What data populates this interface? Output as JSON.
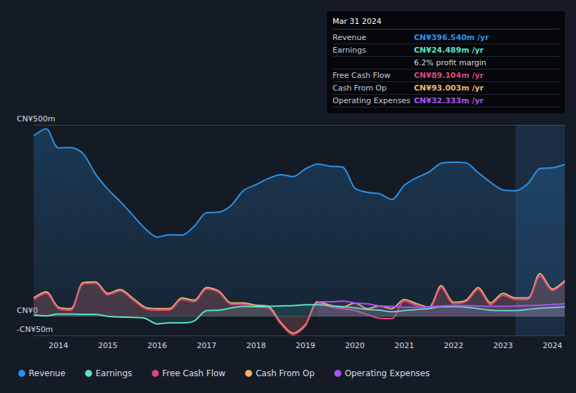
{
  "chart_data": {
    "type": "area",
    "x": [
      2013.5,
      2013.75,
      2014,
      2014.25,
      2014.5,
      2014.75,
      2015,
      2015.25,
      2015.5,
      2015.75,
      2016,
      2016.25,
      2016.5,
      2016.75,
      2017,
      2017.25,
      2017.5,
      2017.75,
      2018,
      2018.25,
      2018.5,
      2018.75,
      2019,
      2019.25,
      2019.5,
      2019.75,
      2020,
      2020.25,
      2020.5,
      2020.75,
      2021,
      2021.25,
      2021.5,
      2021.75,
      2022,
      2022.25,
      2022.5,
      2022.75,
      2023,
      2023.25,
      2023.5,
      2023.75,
      2024,
      2024.25
    ],
    "xlim": [
      2013.5,
      2024.25
    ],
    "xticks": [
      2014,
      2015,
      2016,
      2017,
      2018,
      2019,
      2020,
      2021,
      2022,
      2023,
      2024
    ],
    "ylim": [
      -50,
      500
    ],
    "yticks": [
      {
        "value": 500,
        "label": "CN¥500m"
      },
      {
        "value": 0,
        "label": "CN¥0"
      },
      {
        "value": -50,
        "label": "-CN¥50m"
      }
    ],
    "grid": true,
    "legend": "bottom-left",
    "highlight": [
      2023.25,
      2024.25
    ],
    "series": [
      {
        "name": "Revenue",
        "color": "#2d93e6",
        "values": [
          472,
          490,
          440,
          441,
          425,
          372,
          332,
          300,
          265,
          230,
          207,
          213,
          212,
          235,
          271,
          272,
          290,
          329,
          344,
          360,
          370,
          365,
          385,
          398,
          392,
          390,
          335,
          324,
          320,
          305,
          342,
          362,
          377,
          400,
          403,
          401,
          375,
          350,
          330,
          328,
          346,
          386,
          388,
          396.54
        ]
      },
      {
        "name": "Earnings",
        "color": "#5ae3c6",
        "values": [
          4,
          1,
          6,
          6,
          5,
          5,
          0,
          -2,
          -3,
          -5,
          -20,
          -17,
          -17,
          -12,
          15,
          16,
          22,
          26,
          25,
          26,
          27,
          28,
          30,
          30,
          28,
          25,
          22,
          18,
          16,
          12,
          15,
          18,
          20,
          25,
          25,
          24,
          20,
          16,
          15,
          15,
          18,
          21,
          23,
          24.489
        ]
      },
      {
        "name": "Free Cash Flow",
        "color": "#d9487f",
        "values": [
          44,
          60,
          20,
          16,
          84,
          86,
          56,
          66,
          44,
          20,
          16,
          16,
          44,
          38,
          71,
          62,
          31,
          31,
          25,
          22,
          -20,
          -48,
          -25,
          35,
          25,
          20,
          15,
          5,
          -5,
          -6,
          40,
          28,
          20,
          75,
          33,
          38,
          70,
          30,
          55,
          44,
          44,
          105,
          67,
          89.104
        ]
      },
      {
        "name": "Cash From Op",
        "color": "#f0b26c",
        "values": [
          48,
          64,
          24,
          20,
          88,
          90,
          60,
          70,
          48,
          24,
          20,
          20,
          48,
          42,
          75,
          66,
          35,
          35,
          29,
          26,
          -16,
          -44,
          -22,
          38,
          29,
          24,
          35,
          20,
          27,
          20,
          44,
          33,
          24,
          80,
          37,
          42,
          75,
          35,
          60,
          48,
          48,
          112,
          71,
          93.003
        ]
      },
      {
        "name": "Operating Expenses",
        "color": "#a855f0",
        "values": [
          null,
          null,
          null,
          null,
          null,
          null,
          null,
          null,
          null,
          null,
          null,
          null,
          null,
          null,
          null,
          null,
          null,
          null,
          null,
          null,
          null,
          null,
          null,
          38,
          38,
          40,
          35,
          33,
          27,
          26,
          24,
          24,
          25,
          27,
          28,
          28,
          27,
          26,
          26,
          27,
          28,
          29,
          31,
          32.333
        ]
      }
    ],
    "annotations": {
      "title": "Mar 31 2024",
      "rows": [
        {
          "label": "Revenue",
          "text": "CN¥396.540m /yr"
        },
        {
          "label": "Earnings",
          "text": "CN¥24.489m /yr"
        },
        {
          "text": "6.2% profit margin"
        },
        {
          "label": "Free Cash Flow",
          "text": "CN¥89.104m /yr"
        },
        {
          "label": "Cash From Op",
          "text": "CN¥93.003m /yr"
        },
        {
          "label": "Operating Expenses",
          "text": "CN¥32.333m /yr"
        }
      ]
    }
  }
}
